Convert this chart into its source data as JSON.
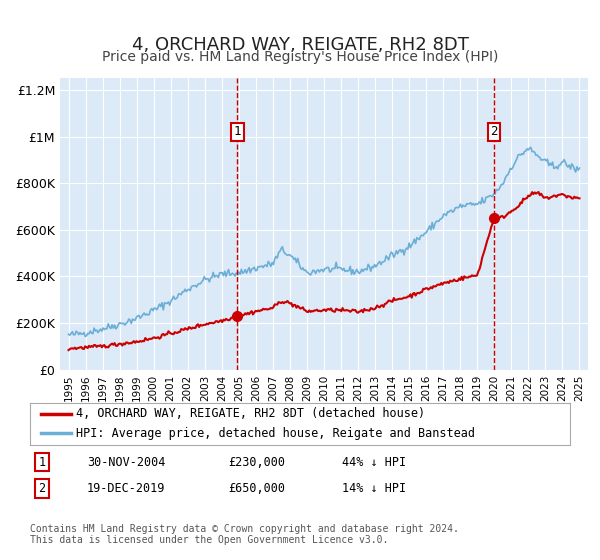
{
  "title": "4, ORCHARD WAY, REIGATE, RH2 8DT",
  "subtitle": "Price paid vs. HM Land Registry's House Price Index (HPI)",
  "title_fontsize": 13,
  "subtitle_fontsize": 10,
  "background_color": "#ffffff",
  "plot_bg_color": "#dce9f7",
  "grid_color": "#ffffff",
  "hpi_color": "#6baed6",
  "price_color": "#cc0000",
  "sale1_x": 2004.92,
  "sale1_y": 230000,
  "sale2_x": 2019.97,
  "sale2_y": 650000,
  "vline_color": "#cc0000",
  "marker_color": "#cc0000",
  "legend_label_price": "4, ORCHARD WAY, REIGATE, RH2 8DT (detached house)",
  "legend_label_hpi": "HPI: Average price, detached house, Reigate and Banstead",
  "table_row1": [
    "1",
    "30-NOV-2004",
    "£230,000",
    "44% ↓ HPI"
  ],
  "table_row2": [
    "2",
    "19-DEC-2019",
    "£650,000",
    "14% ↓ HPI"
  ],
  "footer": "Contains HM Land Registry data © Crown copyright and database right 2024.\nThis data is licensed under the Open Government Licence v3.0.",
  "ylim": [
    0,
    1250000
  ],
  "xlim_start": 1994.5,
  "xlim_end": 2025.5,
  "yticks": [
    0,
    200000,
    400000,
    600000,
    800000,
    1000000,
    1200000
  ],
  "ytick_labels": [
    "£0",
    "£200K",
    "£400K",
    "£600K",
    "£800K",
    "£1M",
    "£1.2M"
  ]
}
